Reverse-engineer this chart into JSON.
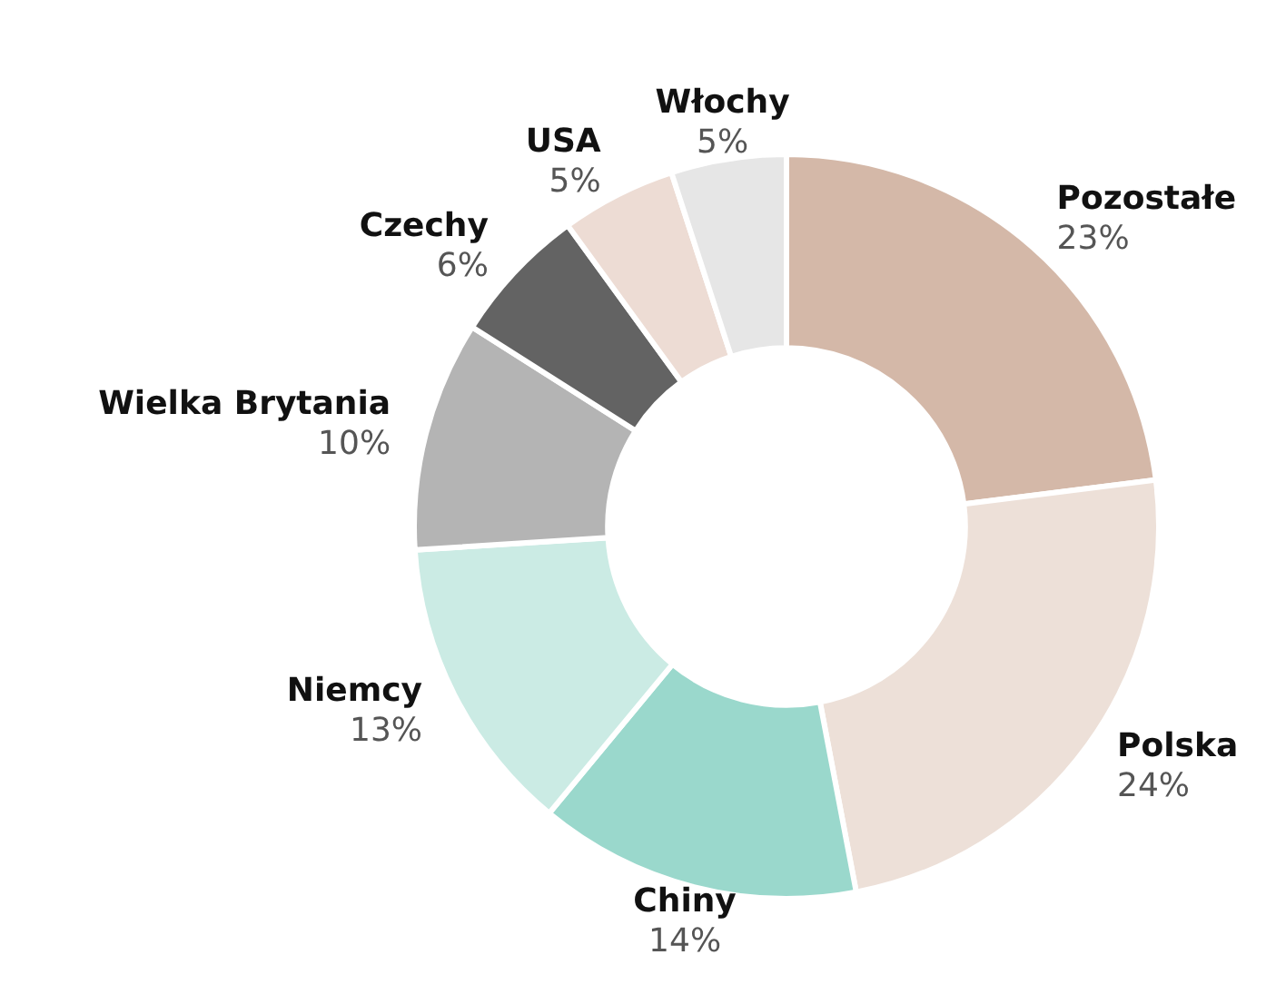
{
  "chart_data": {
    "type": "donut",
    "categories": [
      "Pozostałe",
      "Polska",
      "Chiny",
      "Niemcy",
      "Wielka Brytania",
      "Czechy",
      "USA",
      "Włochy"
    ],
    "values": [
      23,
      24,
      14,
      13,
      10,
      6,
      5,
      5
    ],
    "value_labels": [
      "23%",
      "24%",
      "14%",
      "13%",
      "10%",
      "6%",
      "5%",
      "5%"
    ],
    "colors": [
      "#d4b8a8",
      "#ede0d8",
      "#9ad8cc",
      "#cbebe4",
      "#b4b4b4",
      "#636363",
      "#eddcd4",
      "#e6e6e6"
    ]
  }
}
